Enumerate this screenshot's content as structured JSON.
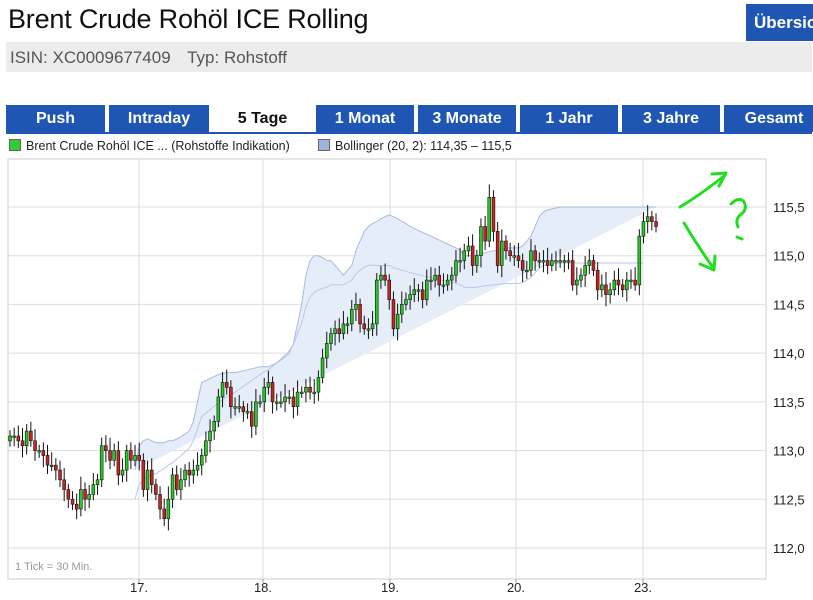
{
  "header": {
    "title": "Brent Crude Rohöl ICE Rolling",
    "overview_button": "Übersicht",
    "isin": "ISIN: XC0009677409",
    "type": "Typ: Rohstoff"
  },
  "tabs": [
    {
      "label": "Push",
      "active": false
    },
    {
      "label": "Intraday",
      "active": false
    },
    {
      "label": "5 Tage",
      "active": true
    },
    {
      "label": "1 Monat",
      "active": false
    },
    {
      "label": "3 Monate",
      "active": false
    },
    {
      "label": "1 Jahr",
      "active": false
    },
    {
      "label": "3 Jahre",
      "active": false
    },
    {
      "label": "Gesamt",
      "active": false
    }
  ],
  "colors": {
    "tab_blue": "#1f56b4",
    "up": "#22cc22",
    "down": "#cc2222",
    "band_fill": "#dde8f7",
    "band_line": "#90a8d8",
    "annotation": "#22dd22"
  },
  "chart_data": {
    "type": "candlestick",
    "legend": [
      {
        "label": "Brent Crude Rohöl ICE ... (Rohstoffe Indikation)",
        "color": "#33cc33"
      },
      {
        "label": "Bollinger (20, 2): 114,35 – 115,5",
        "color": "#9db3e0"
      }
    ],
    "y_ticks": [
      "115,5",
      "115,0",
      "114,5",
      "114,0",
      "113,5",
      "113,0",
      "112,5",
      "112,0"
    ],
    "ylim": [
      112.0,
      115.5
    ],
    "x_ticks": [
      "17.",
      "18.",
      "19.",
      "20.",
      "23."
    ],
    "note": "1 Tick = 30 Min.",
    "grid": true,
    "close": [
      113.15,
      113.15,
      113.1,
      113.05,
      113.2,
      113.1,
      113.0,
      113.0,
      112.95,
      112.85,
      112.85,
      112.8,
      112.7,
      112.6,
      112.5,
      112.45,
      112.4,
      112.6,
      112.5,
      112.55,
      112.65,
      112.7,
      113.05,
      113.0,
      112.9,
      113.0,
      112.75,
      112.8,
      113.0,
      112.9,
      112.95,
      112.9,
      112.6,
      112.8,
      112.65,
      112.55,
      112.4,
      112.3,
      112.5,
      112.75,
      112.6,
      112.7,
      112.8,
      112.75,
      112.8,
      112.85,
      112.95,
      113.1,
      113.2,
      113.3,
      113.55,
      113.7,
      113.65,
      113.45,
      113.45,
      113.45,
      113.4,
      113.4,
      113.25,
      113.5,
      113.5,
      113.65,
      113.7,
      113.5,
      113.5,
      113.5,
      113.55,
      113.55,
      113.45,
      113.6,
      113.6,
      113.65,
      113.6,
      113.6,
      113.75,
      113.95,
      114.1,
      114.2,
      114.25,
      114.2,
      114.3,
      114.3,
      114.45,
      114.5,
      114.3,
      114.25,
      114.25,
      114.3,
      114.75,
      114.8,
      114.75,
      114.55,
      114.25,
      114.4,
      114.5,
      114.55,
      114.6,
      114.65,
      114.65,
      114.55,
      114.75,
      114.75,
      114.8,
      114.7,
      114.7,
      114.75,
      114.8,
      114.95,
      114.95,
      115.05,
      115.1,
      114.9,
      115.0,
      115.3,
      115.15,
      115.6,
      115.25,
      114.9,
      115.15,
      115.05,
      115.0,
      115.0,
      114.95,
      114.85,
      114.85,
      115.05,
      114.95,
      114.95,
      114.95,
      114.9,
      114.95,
      114.95,
      114.95,
      114.95,
      114.95,
      114.7,
      114.75,
      114.8,
      114.9,
      114.95,
      114.85,
      114.65,
      114.7,
      114.6,
      114.65,
      114.75,
      114.7,
      114.65,
      114.75,
      114.75,
      114.7,
      115.2,
      115.35,
      115.4,
      115.35,
      115.3
    ],
    "bollinger_upper": [
      113.1,
      113.1,
      113.08,
      113.07,
      113.06,
      113.05,
      113.04,
      113.03,
      113.02,
      113.01,
      113.0,
      112.99,
      112.98,
      112.97,
      112.96,
      112.95,
      112.94,
      112.93,
      112.92,
      112.91,
      112.9,
      112.89,
      112.88,
      112.87,
      112.86,
      112.85,
      112.84,
      112.83,
      112.82,
      112.81,
      112.8,
      113.05,
      113.1,
      113.12,
      113.1,
      113.08,
      113.08,
      113.08,
      113.1,
      113.1,
      113.12,
      113.14,
      113.17,
      113.2,
      113.3,
      113.5,
      113.7,
      113.72,
      113.74,
      113.76,
      113.78,
      113.79,
      113.8,
      113.8,
      113.8,
      113.81,
      113.82,
      113.83,
      113.84,
      113.85,
      113.86,
      113.86,
      113.86,
      113.88,
      113.9,
      113.93,
      113.96,
      114.0,
      114.1,
      114.3,
      114.5,
      114.8,
      114.95,
      115.0,
      115.0,
      114.98,
      114.95,
      114.95,
      114.9,
      114.85,
      114.8,
      114.85,
      114.9,
      115.05,
      115.15,
      115.25,
      115.3,
      115.33,
      115.35,
      115.38,
      115.4,
      115.42,
      115.4,
      115.38,
      115.35,
      115.33,
      115.3,
      115.28,
      115.26,
      115.24,
      115.22,
      115.2,
      115.18,
      115.16,
      115.14,
      115.12,
      115.1,
      115.08,
      115.06,
      115.0,
      115.0,
      115.0,
      115.0,
      115.02,
      115.03,
      115.04,
      115.05,
      115.06,
      115.07,
      115.08,
      115.08,
      115.08,
      115.08,
      115.1,
      115.15,
      115.2,
      115.3,
      115.4,
      115.45,
      115.47,
      115.48,
      115.49,
      115.5,
      115.5,
      115.5,
      115.5,
      115.5,
      115.5,
      115.5,
      115.5,
      115.5,
      115.5,
      115.5,
      115.5,
      115.5,
      115.5,
      115.5,
      115.5,
      115.5,
      115.5,
      115.5,
      115.5,
      115.5,
      115.5,
      115.5,
      115.5,
      115.5
    ],
    "bollinger_lower": [
      112.3,
      112.35,
      112.4,
      112.4,
      112.42,
      112.45,
      112.48,
      112.5,
      112.5,
      112.52,
      112.55,
      112.58,
      112.6,
      112.62,
      112.65,
      112.68,
      112.6,
      112.55,
      112.5,
      112.45,
      112.4,
      112.35,
      112.3,
      112.25,
      112.2,
      112.15,
      112.12,
      112.15,
      112.18,
      112.2,
      112.2,
      112.25,
      112.3,
      112.35,
      112.4,
      112.45,
      112.5,
      112.55,
      112.6,
      112.65,
      112.7,
      112.75,
      112.8,
      112.85,
      112.9,
      112.95,
      113.0,
      113.05,
      113.1,
      113.15,
      113.2,
      113.25,
      113.3,
      113.35,
      113.4,
      113.45,
      113.5,
      113.55,
      113.6,
      113.65,
      113.7,
      113.75,
      113.8,
      113.85,
      113.9,
      113.95,
      114.0,
      114.05,
      114.08,
      114.1,
      114.12,
      114.15,
      114.2,
      114.25,
      114.3,
      114.35,
      114.4,
      114.45,
      114.5,
      114.55,
      114.6,
      114.6,
      114.6,
      114.58,
      114.55,
      114.52,
      114.5,
      114.48,
      114.45,
      114.42,
      114.4,
      114.38,
      114.35,
      114.35,
      114.35,
      114.35,
      114.35,
      114.35,
      114.35,
      114.35,
      114.35,
      114.35,
      114.35,
      114.35,
      114.35,
      114.35,
      114.35,
      114.35,
      114.35,
      114.35,
      114.35,
      114.35,
      114.35,
      114.35,
      114.35,
      114.35,
      114.35,
      114.35,
      114.35,
      114.35,
      114.35,
      114.35,
      114.35,
      114.35,
      114.35,
      114.35,
      114.35,
      114.35,
      114.35,
      114.35,
      114.35,
      114.35,
      114.35,
      114.35,
      114.35,
      114.35,
      114.35,
      114.35,
      114.35,
      114.35,
      114.35,
      114.35,
      114.35,
      114.35,
      114.35,
      114.35,
      114.35,
      114.35,
      114.35,
      114.35,
      114.35,
      114.35,
      114.35
    ]
  }
}
